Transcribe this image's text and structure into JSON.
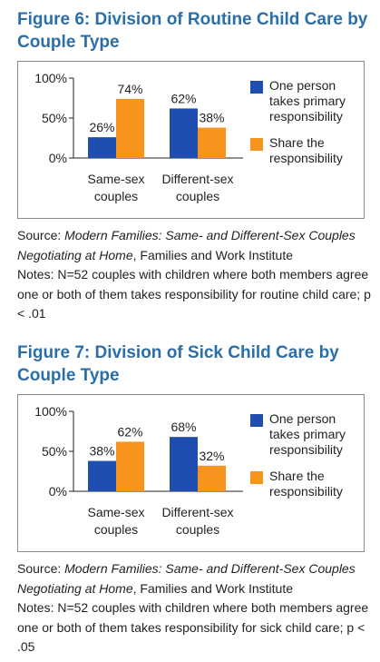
{
  "colors": {
    "title": "#2b6ea8",
    "one_person": "#1f4db0",
    "share": "#f7941d"
  },
  "figures": [
    {
      "title": "Figure 6: Division of Routine Child Care by Couple Type",
      "source_label": "Source: ",
      "source_title": "Modern Families: Same- and Different-Sex Couples Negotiating at Home",
      "source_rest": ", Families and Work Institute",
      "notes": "Notes: N=52 couples with children where both members agree one or both of them takes responsibility for routine child care; p < .01"
    },
    {
      "title": "Figure 7: Division of Sick Child Care by Couple Type",
      "source_label": "Source: ",
      "source_title": "Modern Families: Same- and Different-Sex Couples Negotiating at Home",
      "source_rest": ", Families and Work Institute",
      "notes": "Notes: N=52 couples with children where both members agree one or both of them takes responsibility for sick child care; p < .05"
    }
  ],
  "chart_data": [
    {
      "type": "bar",
      "categories": [
        "Same-sex couples",
        "Different-sex couples"
      ],
      "series": [
        {
          "name": "One person takes primary responsibility",
          "values": [
            26,
            62
          ],
          "labels": [
            "26%",
            "62%"
          ]
        },
        {
          "name": "Share the responsibility",
          "values": [
            74,
            38
          ],
          "labels": [
            "74%",
            "38%"
          ]
        }
      ],
      "yticks": [
        "100%",
        "50%",
        "0%"
      ],
      "ylim": [
        0,
        100
      ],
      "legend_position": "right"
    },
    {
      "type": "bar",
      "categories": [
        "Same-sex couples",
        "Different-sex couples"
      ],
      "series": [
        {
          "name": "One person takes primary responsibility",
          "values": [
            38,
            68
          ],
          "labels": [
            "38%",
            "68%"
          ]
        },
        {
          "name": "Share the responsibility",
          "values": [
            62,
            32
          ],
          "labels": [
            "62%",
            "32%"
          ]
        }
      ],
      "yticks": [
        "100%",
        "50%",
        "0%"
      ],
      "ylim": [
        0,
        100
      ],
      "legend_position": "right"
    }
  ]
}
